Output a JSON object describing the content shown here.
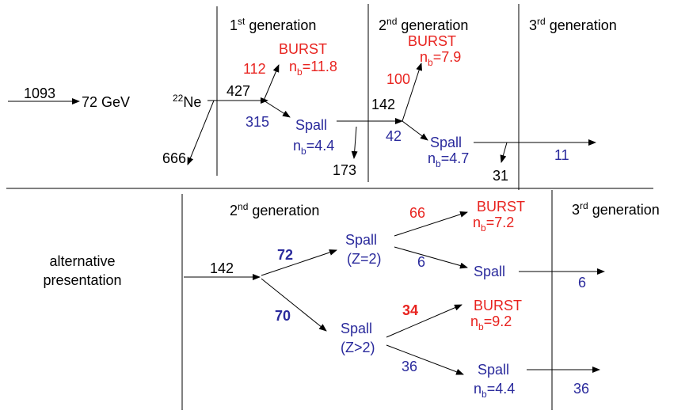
{
  "top": {
    "generations": [
      {
        "num": "1",
        "sup": "st",
        "word": "generation"
      },
      {
        "num": "2",
        "sup": "nd",
        "word": "generation"
      },
      {
        "num": "3",
        "sup": "rd",
        "word": "generation"
      }
    ],
    "input": 1093,
    "energy": "72 GeV",
    "projectile": {
      "mass": "22",
      "symbol": "Ne"
    },
    "primary": 427,
    "fragment": 666,
    "burst1": {
      "count": 112,
      "label": "BURST",
      "nb": {
        "n": "n",
        "sub": "b",
        "value": "=11.8"
      }
    },
    "spall1": {
      "count": 315,
      "label": "Spall",
      "nb": {
        "n": "n",
        "sub": "b",
        "value": "=4.4"
      },
      "lost": 173
    },
    "second": 142,
    "burst2": {
      "count": 100,
      "label": "BURST",
      "nb": {
        "n": "n",
        "sub": "b",
        "value": "=7.9"
      }
    },
    "spall2": {
      "count": 42,
      "label": "Spall",
      "nb": {
        "n": "n",
        "sub": "b",
        "value": "=4.7"
      },
      "lost": 31,
      "out": 11
    }
  },
  "bottom": {
    "generations": [
      {
        "num": "2",
        "sup": "nd",
        "word": "generation"
      },
      {
        "num": "3",
        "sup": "rd",
        "word": "generation"
      }
    ],
    "caption": [
      "alternative",
      "presentation"
    ],
    "input": 142,
    "spall_z2": {
      "count": 72,
      "label": "Spall",
      "charge": "(Z=2)"
    },
    "spall_zgt2": {
      "count": 70,
      "label": "Spall",
      "charge": "(Z>2)"
    },
    "burst_a": {
      "count": 66,
      "label": "BURST",
      "nb": {
        "n": "n",
        "sub": "b",
        "value": "=7.2"
      }
    },
    "spall_a": {
      "count": 6,
      "label": "Spall",
      "out": 6
    },
    "burst_b": {
      "count": 34,
      "label": "BURST",
      "nb": {
        "n": "n",
        "sub": "b",
        "value": "=9.2"
      }
    },
    "spall_b": {
      "count": 36,
      "label": "Spall",
      "nb": {
        "n": "n",
        "sub": "b",
        "value": "=4.4"
      },
      "out": 36
    }
  }
}
